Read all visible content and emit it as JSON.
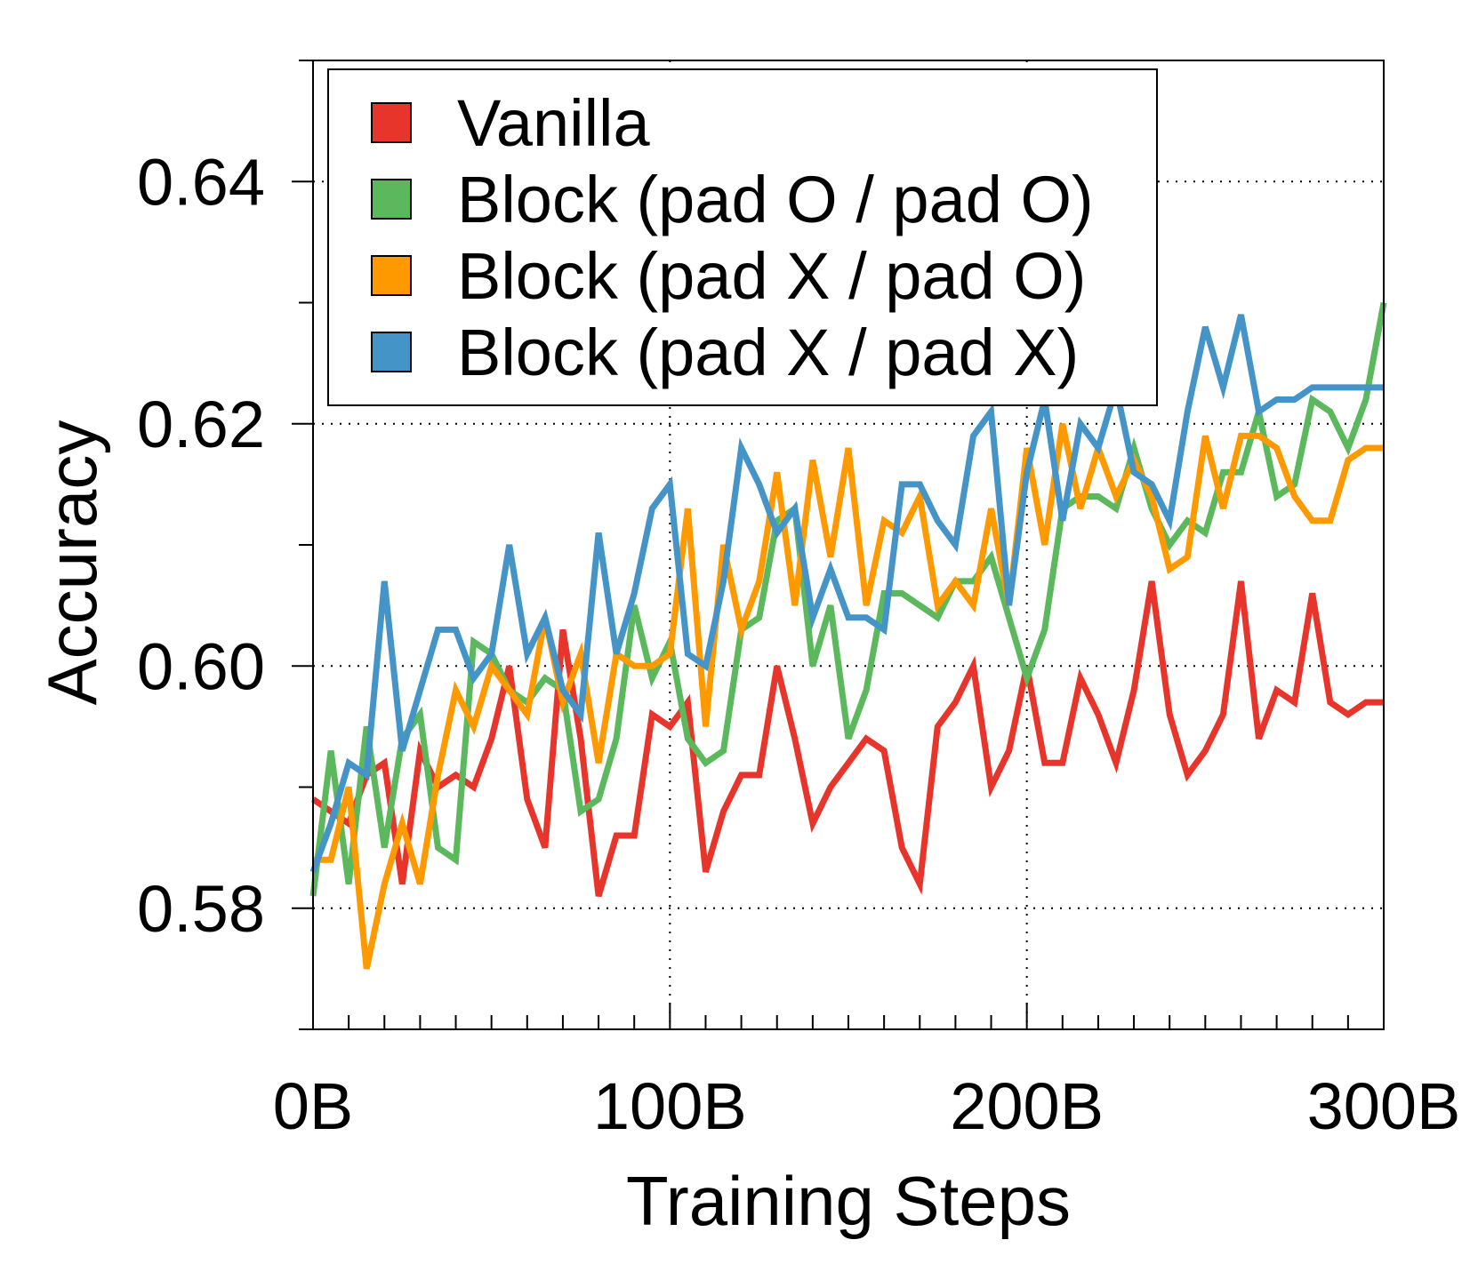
{
  "chart_data": {
    "type": "line",
    "title": "",
    "xlabel": "Training Steps",
    "ylabel": "Accuracy",
    "xlim": [
      0,
      300
    ],
    "ylim": [
      0.57,
      0.65
    ],
    "x_unit": "B tokens",
    "xticks": [
      0,
      100,
      200,
      300
    ],
    "xtick_labels": [
      "0B",
      "100B",
      "200B",
      "300B"
    ],
    "yticks": [
      0.58,
      0.6,
      0.62,
      0.64
    ],
    "ytick_labels": [
      "0.58",
      "0.60",
      "0.62",
      "0.64"
    ],
    "grid": "dotted, at major ticks",
    "legend_position": "top-left",
    "x": [
      0,
      5,
      10,
      15,
      20,
      25,
      30,
      35,
      40,
      45,
      50,
      55,
      60,
      65,
      70,
      75,
      80,
      85,
      90,
      95,
      100,
      105,
      110,
      115,
      120,
      125,
      130,
      135,
      140,
      145,
      150,
      155,
      160,
      165,
      170,
      175,
      180,
      185,
      190,
      195,
      200,
      205,
      210,
      215,
      220,
      225,
      230,
      235,
      240,
      245,
      250,
      255,
      260,
      265,
      270,
      275,
      280,
      285,
      290,
      295,
      300
    ],
    "series": [
      {
        "name": "Vanilla",
        "color": "#e8352b",
        "values": [
          0.589,
          0.588,
          0.587,
          0.591,
          0.592,
          0.582,
          0.593,
          0.59,
          0.591,
          0.59,
          0.594,
          0.6,
          0.589,
          0.585,
          0.603,
          0.594,
          0.581,
          0.586,
          0.586,
          0.596,
          0.595,
          0.597,
          0.583,
          0.588,
          0.591,
          0.591,
          0.6,
          0.594,
          0.587,
          0.59,
          0.592,
          0.594,
          0.593,
          0.585,
          0.582,
          0.595,
          0.597,
          0.6,
          0.59,
          0.593,
          0.6,
          0.592,
          0.592,
          0.599,
          0.596,
          0.592,
          0.598,
          0.607,
          0.596,
          0.591,
          0.593,
          0.596,
          0.607,
          0.594,
          0.598,
          0.597,
          0.606,
          0.597,
          0.596,
          0.597,
          0.597
        ]
      },
      {
        "name": "Block (pad O / pad O)",
        "color": "#5cb85c",
        "values": [
          0.581,
          0.593,
          0.582,
          0.595,
          0.585,
          0.594,
          0.596,
          0.585,
          0.584,
          0.602,
          0.601,
          0.598,
          0.597,
          0.599,
          0.598,
          0.588,
          0.589,
          0.594,
          0.605,
          0.599,
          0.602,
          0.594,
          0.592,
          0.593,
          0.603,
          0.604,
          0.612,
          0.613,
          0.6,
          0.605,
          0.594,
          0.598,
          0.606,
          0.606,
          0.605,
          0.604,
          0.607,
          0.607,
          0.609,
          0.604,
          0.599,
          0.603,
          0.613,
          0.614,
          0.614,
          0.613,
          0.618,
          0.613,
          0.61,
          0.612,
          0.611,
          0.616,
          0.616,
          0.621,
          0.614,
          0.615,
          0.622,
          0.621,
          0.618,
          0.622,
          0.63
        ]
      },
      {
        "name": "Block (pad X / pad O)",
        "color": "#ff9900",
        "values": [
          0.584,
          0.584,
          0.59,
          0.575,
          0.582,
          0.587,
          0.582,
          0.591,
          0.598,
          0.595,
          0.6,
          0.598,
          0.596,
          0.604,
          0.597,
          0.601,
          0.592,
          0.601,
          0.6,
          0.6,
          0.601,
          0.613,
          0.595,
          0.61,
          0.603,
          0.607,
          0.616,
          0.605,
          0.617,
          0.609,
          0.618,
          0.605,
          0.612,
          0.611,
          0.614,
          0.605,
          0.607,
          0.605,
          0.613,
          0.605,
          0.618,
          0.61,
          0.62,
          0.613,
          0.618,
          0.614,
          0.617,
          0.614,
          0.608,
          0.609,
          0.619,
          0.613,
          0.619,
          0.619,
          0.618,
          0.614,
          0.612,
          0.612,
          0.617,
          0.618,
          0.618
        ]
      },
      {
        "name": "Block (pad X / pad X)",
        "color": "#4594c8",
        "values": [
          0.583,
          0.587,
          0.592,
          0.591,
          0.607,
          0.593,
          0.598,
          0.603,
          0.603,
          0.599,
          0.601,
          0.61,
          0.601,
          0.604,
          0.598,
          0.596,
          0.611,
          0.601,
          0.606,
          0.613,
          0.615,
          0.601,
          0.6,
          0.607,
          0.618,
          0.615,
          0.611,
          0.613,
          0.604,
          0.608,
          0.604,
          0.604,
          0.603,
          0.615,
          0.615,
          0.612,
          0.61,
          0.619,
          0.621,
          0.605,
          0.616,
          0.622,
          0.612,
          0.62,
          0.618,
          0.623,
          0.616,
          0.615,
          0.612,
          0.621,
          0.628,
          0.623,
          0.629,
          0.621,
          0.622,
          0.622,
          0.623,
          0.623,
          0.623,
          0.623,
          0.623
        ]
      }
    ]
  }
}
